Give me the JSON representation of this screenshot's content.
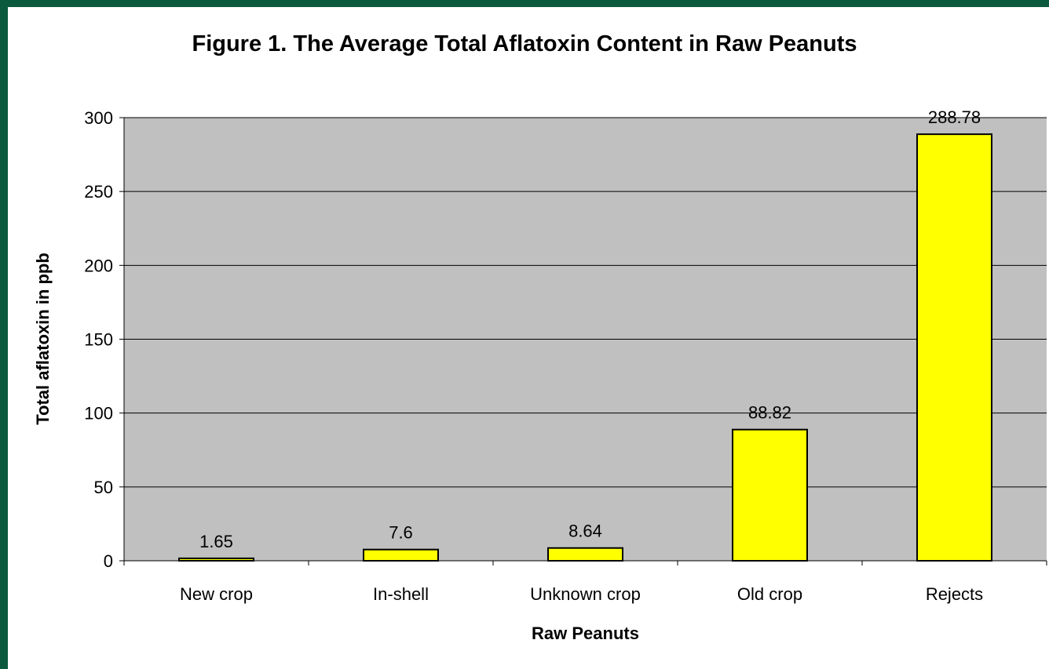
{
  "chart_data": {
    "type": "bar",
    "title": "Figure 1. The Average Total Aflatoxin Content in Raw Peanuts",
    "xlabel": "Raw Peanuts",
    "ylabel": "Total aflatoxin in ppb",
    "categories": [
      "New crop",
      "In-shell",
      "Unknown crop",
      "Old crop",
      "Rejects"
    ],
    "values": [
      1.65,
      7.6,
      8.64,
      88.82,
      288.78
    ],
    "data_labels": [
      "1.65",
      "7.6",
      "8.64",
      "88.82",
      "288.78"
    ],
    "ylim": [
      0,
      300
    ],
    "yticks": [
      0,
      50,
      100,
      150,
      200,
      250,
      300
    ],
    "grid": true,
    "legend": "none",
    "colors": {
      "frame": "#0b5a3e",
      "plot_background": "#c0c0c0",
      "bar_fill": "#ffff00",
      "bar_stroke": "#000000",
      "gridline": "#000000"
    }
  }
}
